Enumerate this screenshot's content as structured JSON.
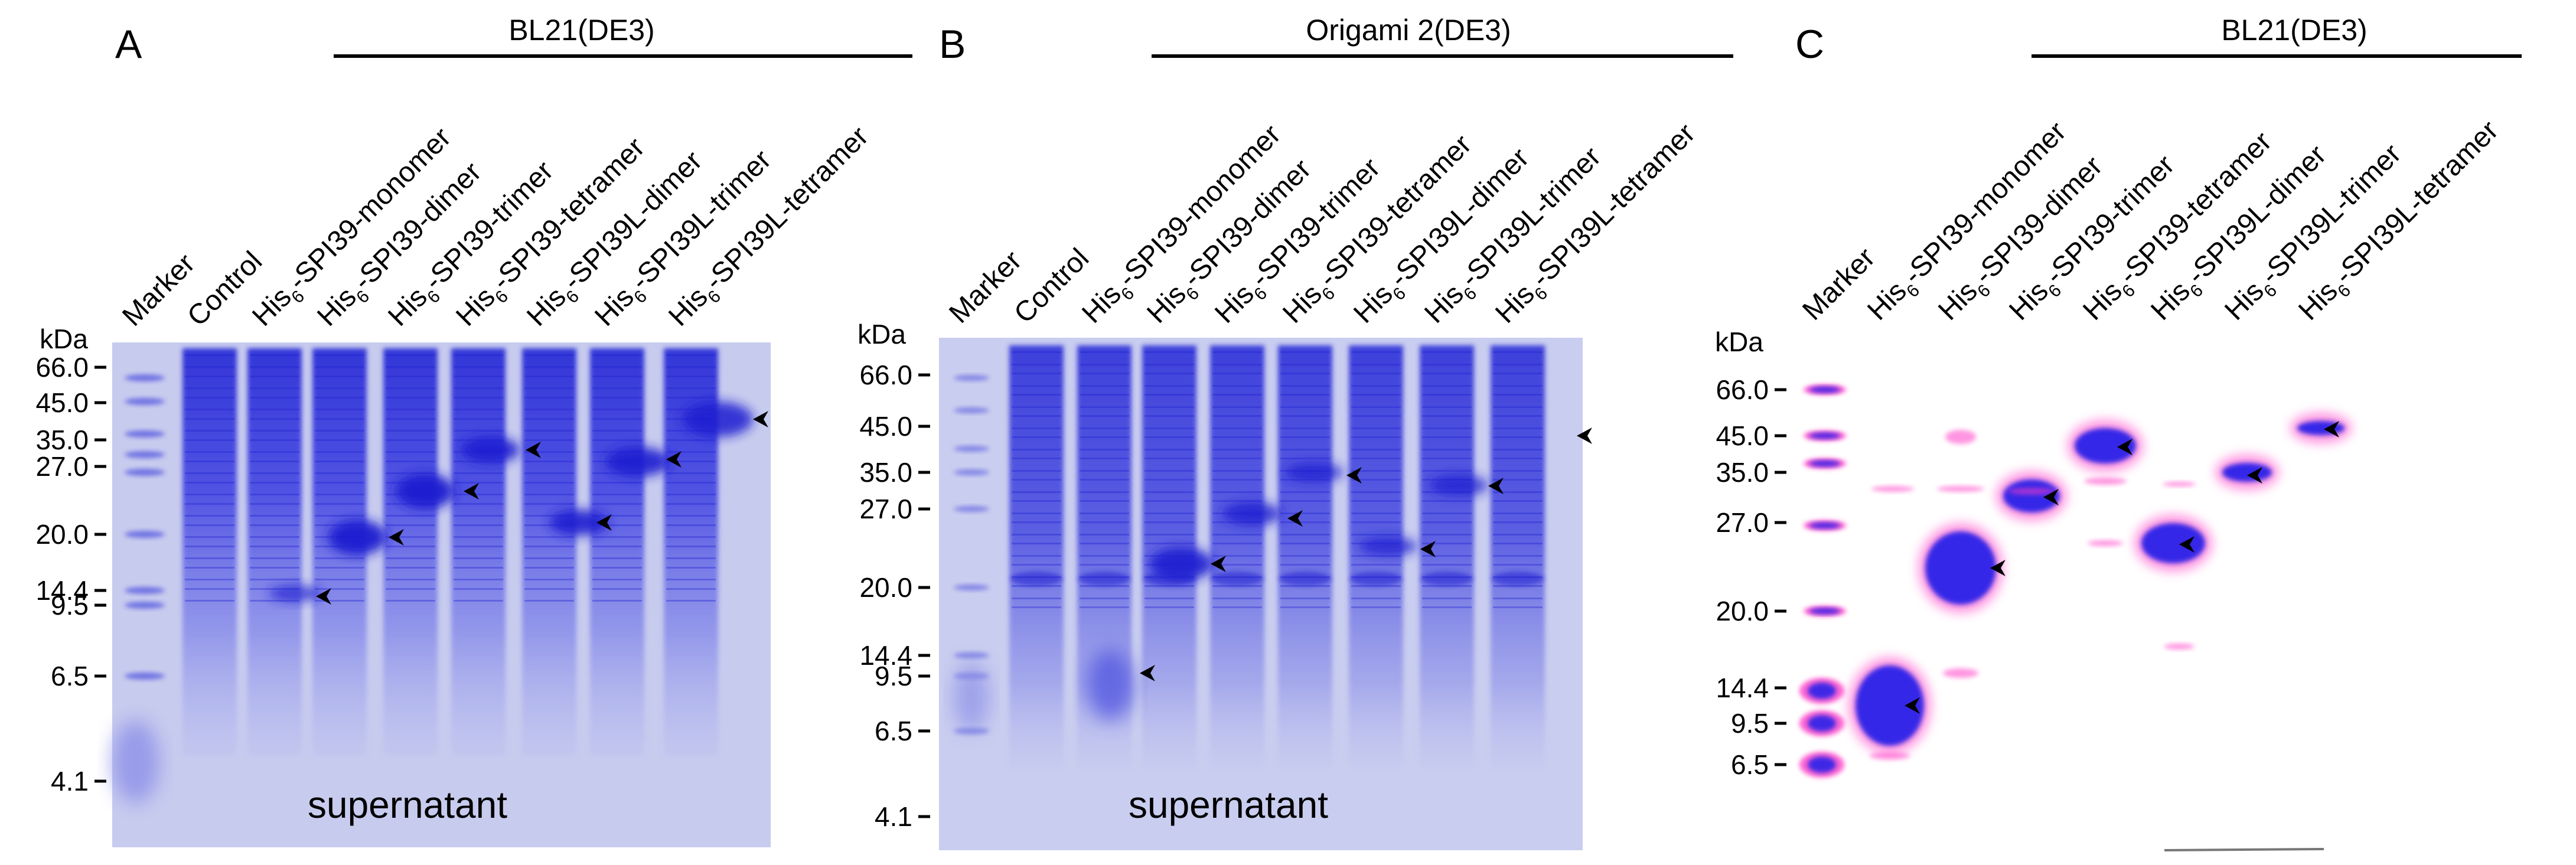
{
  "panels": [
    {
      "letter": "A",
      "strain": "BL21(DE3)",
      "caption": "supernatant",
      "unit": "kDa",
      "markers": [
        "66.0",
        "45.0",
        "35.0",
        "27.0",
        "20.0",
        "14.4",
        "9.5",
        "6.5",
        "4.1"
      ],
      "lanes": [
        {
          "prefix": "Marker",
          "sub": "",
          "suffix": ""
        },
        {
          "prefix": "Control",
          "sub": "",
          "suffix": ""
        },
        {
          "prefix": "His",
          "sub": "6",
          "suffix": "-SPI39-monomer"
        },
        {
          "prefix": "His",
          "sub": "6",
          "suffix": "-SPI39-dimer"
        },
        {
          "prefix": "His",
          "sub": "6",
          "suffix": "-SPI39-trimer"
        },
        {
          "prefix": "His",
          "sub": "6",
          "suffix": "-SPI39-tetramer"
        },
        {
          "prefix": "His",
          "sub": "6",
          "suffix": "-SPI39L-dimer"
        },
        {
          "prefix": "His",
          "sub": "6",
          "suffix": "-SPI39L-trimer"
        },
        {
          "prefix": "His",
          "sub": "6",
          "suffix": "-SPI39L-tetramer"
        }
      ]
    },
    {
      "letter": "B",
      "strain": "Origami 2(DE3)",
      "caption": "supernatant",
      "unit": "kDa",
      "markers": [
        "66.0",
        "45.0",
        "35.0",
        "27.0",
        "20.0",
        "14.4",
        "9.5",
        "6.5",
        "4.1"
      ],
      "lanes": [
        {
          "prefix": "Marker",
          "sub": "",
          "suffix": ""
        },
        {
          "prefix": "Control",
          "sub": "",
          "suffix": ""
        },
        {
          "prefix": "His",
          "sub": "6",
          "suffix": "-SPI39-monomer"
        },
        {
          "prefix": "His",
          "sub": "6",
          "suffix": "-SPI39-dimer"
        },
        {
          "prefix": "His",
          "sub": "6",
          "suffix": "-SPI39-trimer"
        },
        {
          "prefix": "His",
          "sub": "6",
          "suffix": "-SPI39-tetramer"
        },
        {
          "prefix": "His",
          "sub": "6",
          "suffix": "-SPI39L-dimer"
        },
        {
          "prefix": "His",
          "sub": "6",
          "suffix": "-SPI39L-trimer"
        },
        {
          "prefix": "His",
          "sub": "6",
          "suffix": "-SPI39L-tetramer"
        }
      ]
    },
    {
      "letter": "C",
      "strain": "BL21(DE3)",
      "unit": "kDa",
      "markers": [
        "66.0",
        "45.0",
        "35.0",
        "27.0",
        "20.0",
        "14.4",
        "9.5",
        "6.5"
      ],
      "lanes": [
        {
          "prefix": "Marker",
          "sub": "",
          "suffix": ""
        },
        {
          "prefix": "His",
          "sub": "6",
          "suffix": "-SPI39-monomer"
        },
        {
          "prefix": "His",
          "sub": "6",
          "suffix": "-SPI39-dimer"
        },
        {
          "prefix": "His",
          "sub": "6",
          "suffix": "-SPI39-trimer"
        },
        {
          "prefix": "His",
          "sub": "6",
          "suffix": "-SPI39-tetramer"
        },
        {
          "prefix": "His",
          "sub": "6",
          "suffix": "-SPI39L-dimer"
        },
        {
          "prefix": "His",
          "sub": "6",
          "suffix": "-SPI39L-trimer"
        },
        {
          "prefix": "His",
          "sub": "6",
          "suffix": "-SPI39L-tetramer"
        }
      ]
    }
  ],
  "colors": {
    "coomassie_bg": "#c9cdef",
    "coomassie_band": "#3d3fe0",
    "coomassie_dark": "#1f1fd0",
    "western_band": "#2a20e8",
    "western_halo": "#ff40c8",
    "arrow": "#000000"
  }
}
